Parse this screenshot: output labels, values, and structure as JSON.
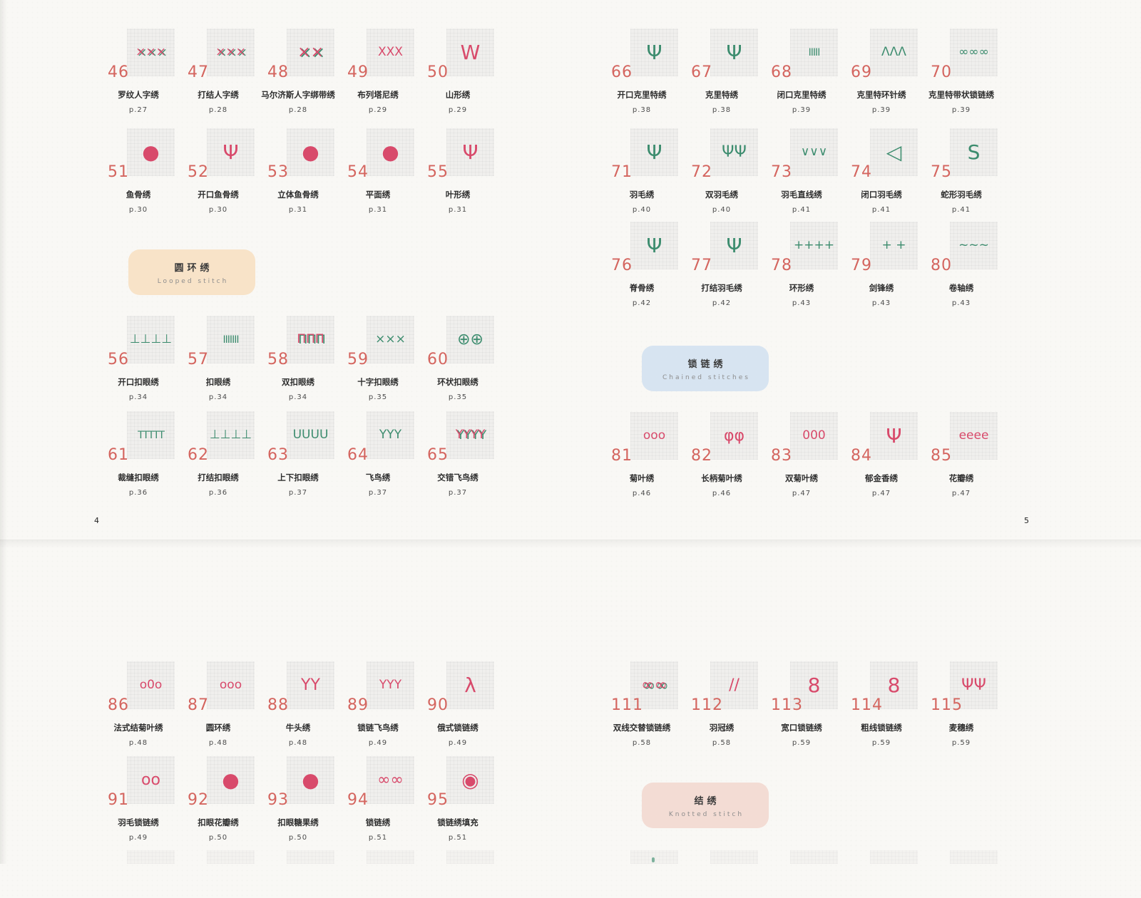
{
  "colors": {
    "pink": "#d84a6b",
    "green": "#3c8c6e",
    "number_red": "#d4655f",
    "thumb_bg": "#f0efed",
    "section_looped": "#f8e3c8",
    "section_chained": "#d7e4f1",
    "section_knotted": "#f3dcd4"
  },
  "pages": [
    {
      "id": "tl",
      "page_number": "4",
      "blocks": [
        {
          "type": "row",
          "items": [
            {
              "num": "46",
              "name": "罗纹人字绣",
              "page": "p.27",
              "color": "mixed",
              "glyph": "×××"
            },
            {
              "num": "47",
              "name": "打结人字绣",
              "page": "p.28",
              "color": "mixed",
              "glyph": "×××"
            },
            {
              "num": "48",
              "name": "马尔济斯人字绑带绣",
              "page": "p.28",
              "color": "mixed",
              "glyph": "××"
            },
            {
              "num": "49",
              "name": "布列塔尼绣",
              "page": "p.29",
              "color": "pink",
              "glyph": "XXX"
            },
            {
              "num": "50",
              "name": "山形绣",
              "page": "p.29",
              "color": "pink",
              "glyph": "W"
            }
          ]
        },
        {
          "type": "row",
          "items": [
            {
              "num": "51",
              "name": "鱼骨绣",
              "page": "p.30",
              "color": "pink",
              "glyph": "●"
            },
            {
              "num": "52",
              "name": "开口鱼骨绣",
              "page": "p.30",
              "color": "pink",
              "glyph": "Ψ"
            },
            {
              "num": "53",
              "name": "立体鱼骨绣",
              "page": "p.31",
              "color": "pink",
              "glyph": "●"
            },
            {
              "num": "54",
              "name": "平面绣",
              "page": "p.31",
              "color": "pink",
              "glyph": "●"
            },
            {
              "num": "55",
              "name": "叶形绣",
              "page": "p.31",
              "color": "pink",
              "glyph": "Ψ"
            }
          ]
        },
        {
          "type": "section",
          "id": "looped",
          "title": "圆环绣",
          "subtitle": "Looped stitch"
        },
        {
          "type": "row",
          "items": [
            {
              "num": "56",
              "name": "开口扣眼绣",
              "page": "p.34",
              "color": "green",
              "glyph": "⊥⊥⊥⊥"
            },
            {
              "num": "57",
              "name": "扣眼绣",
              "page": "p.34",
              "color": "green",
              "glyph": "IIIIIII"
            },
            {
              "num": "58",
              "name": "双扣眼绣",
              "page": "p.34",
              "color": "mixed",
              "glyph": "ΠΠΠ"
            },
            {
              "num": "59",
              "name": "十字扣眼绣",
              "page": "p.35",
              "color": "green",
              "glyph": "×××"
            },
            {
              "num": "60",
              "name": "环状扣眼绣",
              "page": "p.35",
              "color": "green",
              "glyph": "⊕⊕"
            }
          ]
        },
        {
          "type": "row",
          "items": [
            {
              "num": "61",
              "name": "裁缝扣眼绣",
              "page": "p.36",
              "color": "green",
              "glyph": "TTTTT"
            },
            {
              "num": "62",
              "name": "打结扣眼绣",
              "page": "p.36",
              "color": "green",
              "glyph": "⊥⊥⊥⊥"
            },
            {
              "num": "63",
              "name": "上下扣眼绣",
              "page": "p.37",
              "color": "green",
              "glyph": "UUUU"
            },
            {
              "num": "64",
              "name": "飞鸟绣",
              "page": "p.37",
              "color": "green",
              "glyph": "YYY"
            },
            {
              "num": "65",
              "name": "交错飞鸟绣",
              "page": "p.37",
              "color": "mixed",
              "glyph": "YYYY"
            }
          ]
        }
      ]
    },
    {
      "id": "tr",
      "page_number": "5",
      "blocks": [
        {
          "type": "row",
          "items": [
            {
              "num": "66",
              "name": "开口克里特绣",
              "page": "p.38",
              "color": "green",
              "glyph": "Ψ"
            },
            {
              "num": "67",
              "name": "克里特绣",
              "page": "p.38",
              "color": "green",
              "glyph": "Ψ"
            },
            {
              "num": "68",
              "name": "闭口克里特绣",
              "page": "p.39",
              "color": "green",
              "glyph": "IIIII"
            },
            {
              "num": "69",
              "name": "克里特环针绣",
              "page": "p.39",
              "color": "green",
              "glyph": "ΛΛΛ"
            },
            {
              "num": "70",
              "name": "克里特带状锁链绣",
              "page": "p.39",
              "color": "green",
              "glyph": "∞∞∞"
            }
          ]
        },
        {
          "type": "row",
          "items": [
            {
              "num": "71",
              "name": "羽毛绣",
              "page": "p.40",
              "color": "green",
              "glyph": "Ψ"
            },
            {
              "num": "72",
              "name": "双羽毛绣",
              "page": "p.40",
              "color": "green",
              "glyph": "ΨΨ"
            },
            {
              "num": "73",
              "name": "羽毛直线绣",
              "page": "p.41",
              "color": "green",
              "glyph": "∨∨∨"
            },
            {
              "num": "74",
              "name": "闭口羽毛绣",
              "page": "p.41",
              "color": "green",
              "glyph": "◁"
            },
            {
              "num": "75",
              "name": "蛇形羽毛绣",
              "page": "p.41",
              "color": "green",
              "glyph": "S"
            }
          ]
        },
        {
          "type": "row",
          "items": [
            {
              "num": "76",
              "name": "脊骨绣",
              "page": "p.42",
              "color": "green",
              "glyph": "Ψ"
            },
            {
              "num": "77",
              "name": "打结羽毛绣",
              "page": "p.42",
              "color": "green",
              "glyph": "Ψ"
            },
            {
              "num": "78",
              "name": "环形绣",
              "page": "p.43",
              "color": "green",
              "glyph": "++++"
            },
            {
              "num": "79",
              "name": "剑锋绣",
              "page": "p.43",
              "color": "green",
              "glyph": "+ +"
            },
            {
              "num": "80",
              "name": "卷轴绣",
              "page": "p.43",
              "color": "green",
              "glyph": "~~~"
            }
          ]
        },
        {
          "type": "section",
          "id": "chained",
          "title": "锁链绣",
          "subtitle": "Chained stitches"
        },
        {
          "type": "row",
          "items": [
            {
              "num": "81",
              "name": "菊叶绣",
              "page": "p.46",
              "color": "pink",
              "glyph": "ooo"
            },
            {
              "num": "82",
              "name": "长柄菊叶绣",
              "page": "p.46",
              "color": "pink",
              "glyph": "φφ"
            },
            {
              "num": "83",
              "name": "双菊叶绣",
              "page": "p.47",
              "color": "pink",
              "glyph": "000"
            },
            {
              "num": "84",
              "name": "郁金香绣",
              "page": "p.47",
              "color": "pink",
              "glyph": "Ψ"
            },
            {
              "num": "85",
              "name": "花瓣绣",
              "page": "p.47",
              "color": "pink",
              "glyph": "eeee"
            }
          ]
        }
      ]
    },
    {
      "id": "bl",
      "blocks": [
        {
          "type": "row",
          "items": [
            {
              "num": "86",
              "name": "法式结菊叶绣",
              "page": "p.48",
              "color": "pink",
              "glyph": "o0o"
            },
            {
              "num": "87",
              "name": "圆环绣",
              "page": "p.48",
              "color": "pink",
              "glyph": "ooo"
            },
            {
              "num": "88",
              "name": "牛头绣",
              "page": "p.48",
              "color": "pink",
              "glyph": "YY"
            },
            {
              "num": "89",
              "name": "锁链飞鸟绣",
              "page": "p.49",
              "color": "pink",
              "glyph": "YYY"
            },
            {
              "num": "90",
              "name": "俄式锁链绣",
              "page": "p.49",
              "color": "pink",
              "glyph": "λ"
            }
          ]
        },
        {
          "type": "row",
          "items": [
            {
              "num": "91",
              "name": "羽毛锁链绣",
              "page": "p.49",
              "color": "pink",
              "glyph": "oo"
            },
            {
              "num": "92",
              "name": "扣眼花瓣绣",
              "page": "p.50",
              "color": "pink",
              "glyph": "●"
            },
            {
              "num": "93",
              "name": "扣眼糖果绣",
              "page": "p.50",
              "color": "pink",
              "glyph": "●"
            },
            {
              "num": "94",
              "name": "锁链绣",
              "page": "p.51",
              "color": "pink",
              "glyph": "∞∞"
            },
            {
              "num": "95",
              "name": "锁链绣填充",
              "page": "p.51",
              "color": "pink",
              "glyph": "◉"
            }
          ]
        },
        {
          "type": "partial_row"
        }
      ]
    },
    {
      "id": "br",
      "blocks": [
        {
          "type": "row",
          "items": [
            {
              "num": "111",
              "name": "双线交替锁链绣",
              "page": "p.58",
              "color": "mixed",
              "glyph": "∞∞"
            },
            {
              "num": "112",
              "name": "羽冠绣",
              "page": "p.58",
              "color": "pink",
              "glyph": "//"
            },
            {
              "num": "113",
              "name": "宽口锁链绣",
              "page": "p.59",
              "color": "pink",
              "glyph": "8"
            },
            {
              "num": "114",
              "name": "粗线锁链绣",
              "page": "p.59",
              "color": "pink",
              "glyph": "8"
            },
            {
              "num": "115",
              "name": "麦穗绣",
              "page": "p.59",
              "color": "pink",
              "glyph": "ΨΨ"
            }
          ]
        },
        {
          "type": "section",
          "id": "knotted",
          "title": "结绣",
          "subtitle": "Knotted stitch"
        },
        {
          "type": "partial_row"
        }
      ]
    }
  ]
}
